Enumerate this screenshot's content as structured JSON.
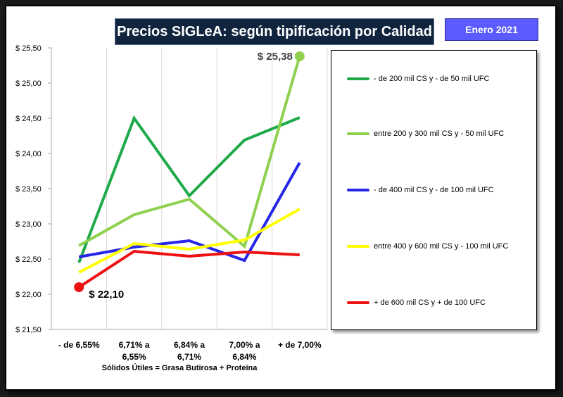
{
  "header": {
    "title": "Precios SIGLeA: según tipificación  por Calidad",
    "date_badge": "Enero 2021"
  },
  "chart_data": {
    "type": "line",
    "title": "Precios SIGLeA: según tipificación  por Calidad",
    "xlabel": "Sólidos  Útiles = Grasa  Butirosa + Proteína",
    "ylabel": "",
    "ylim": [
      21.5,
      25.5
    ],
    "yticks": [
      "$ 21,50",
      "$ 22,00",
      "$ 22,50",
      "$ 23,00",
      "$ 23,50",
      "$ 24,00",
      "$ 24,50",
      "$ 25,00",
      "$ 25,50"
    ],
    "ytick_values": [
      21.5,
      22.0,
      22.5,
      23.0,
      23.5,
      24.0,
      24.5,
      25.0,
      25.5
    ],
    "categories": [
      [
        "- de 6,55%"
      ],
      [
        "6,71% a",
        "6,55%"
      ],
      [
        "6,84% a",
        "6,71%"
      ],
      [
        "7,00% a",
        "6,84%"
      ],
      [
        "+ de 7,00%"
      ]
    ],
    "series": [
      {
        "name": "- de 200 mil CS y  - de 50 mil UFC",
        "color": "#1faa4a",
        "values": [
          22.45,
          24.5,
          23.4,
          24.19,
          24.51
        ]
      },
      {
        "name": "entre 200 y 300 mil CS y - 50 mil UFC",
        "color": "#8fd14f",
        "values": [
          22.69,
          23.13,
          23.35,
          22.68,
          25.38
        ]
      },
      {
        "name": "- de 400 mil CS y - de 100 mil UFC",
        "color": "#2626e8",
        "values": [
          22.53,
          22.67,
          22.76,
          22.48,
          23.87
        ]
      },
      {
        "name": "entre 400 y 600 mil CS y - 100 mil UFC",
        "color": "#ffff00",
        "values": [
          22.31,
          22.72,
          22.64,
          22.77,
          23.21
        ]
      },
      {
        "name": "+ de 600 mil CS y + de 100 UFC",
        "color": "#ee1111",
        "values": [
          22.1,
          22.61,
          22.54,
          22.6,
          22.56
        ]
      }
    ],
    "annotations": [
      {
        "text": "$ 22,10",
        "series": 4,
        "index": 0
      },
      {
        "text": "$ 25,38",
        "series": 1,
        "index": 4
      }
    ],
    "grid": "vertical",
    "legend_position": "right"
  }
}
